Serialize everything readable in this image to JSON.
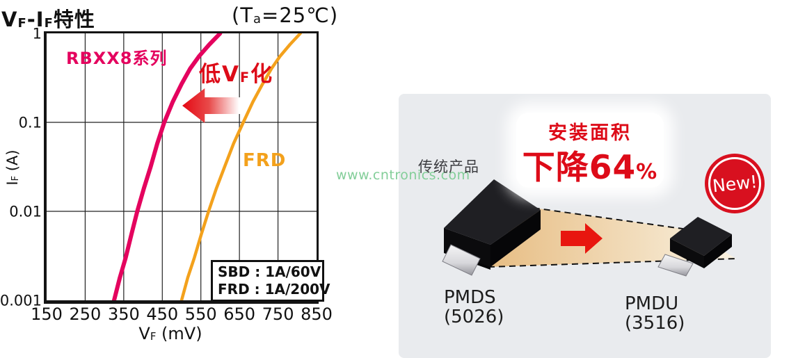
{
  "chart": {
    "title": {
      "p1": "V",
      "s1": "F",
      "p2": "-I",
      "s2": "F",
      "p3": "特性"
    },
    "condition": {
      "pre": "(T",
      "sub": "a",
      "post": "=25℃)"
    },
    "x_axis_label": {
      "main": "V",
      "sub": "F",
      "unit": " (mV)"
    },
    "y_axis_label": {
      "main": "I",
      "sub": "F",
      "unit": " (A)"
    },
    "series_label_sbd": "RBXX8系列",
    "series_label_frd": "FRD",
    "annotation_low_vf": {
      "p1": "低",
      "p2": "V",
      "sub": "F",
      "p3": "化"
    },
    "spec_box": {
      "line1": "SBD : 1A/60V",
      "line2": "FRD : 1A/200V"
    }
  },
  "chart_data": {
    "type": "line",
    "title": "VF-IF特性 (Ta=25℃)",
    "xlabel": "VF (mV)",
    "ylabel": "IF (A)",
    "x_range": [
      150,
      850
    ],
    "y_range": [
      0.001,
      1
    ],
    "y_scale": "log",
    "grid": true,
    "x_ticks": [
      150,
      250,
      350,
      450,
      550,
      650,
      750,
      850
    ],
    "y_ticks": [
      1,
      0.1,
      0.01,
      0.001
    ],
    "x_gridlines": [
      250,
      350,
      450,
      550,
      650,
      750
    ],
    "y_gridlines": [
      0.1,
      0.01
    ],
    "series": [
      {
        "name": "RBXX8系列 (SBD : 1A/60V)",
        "id": "sbd-curve",
        "color": "#e4035e",
        "width": 6,
        "points": [
          [
            325,
            0.001
          ],
          [
            340,
            0.0018
          ],
          [
            355,
            0.003
          ],
          [
            370,
            0.0055
          ],
          [
            385,
            0.01
          ],
          [
            402,
            0.018
          ],
          [
            420,
            0.032
          ],
          [
            437,
            0.058
          ],
          [
            455,
            0.1
          ],
          [
            477,
            0.17
          ],
          [
            500,
            0.27
          ],
          [
            522,
            0.4
          ],
          [
            545,
            0.55
          ],
          [
            572,
            0.75
          ],
          [
            600,
            1.0
          ]
        ]
      },
      {
        "name": "FRD (1A/200V)",
        "id": "frd-curve",
        "color": "#f3a11c",
        "width": 4.5,
        "points": [
          [
            500,
            0.001
          ],
          [
            516,
            0.0018
          ],
          [
            533,
            0.003
          ],
          [
            551,
            0.0055
          ],
          [
            570,
            0.01
          ],
          [
            590,
            0.018
          ],
          [
            612,
            0.032
          ],
          [
            635,
            0.058
          ],
          [
            660,
            0.1
          ],
          [
            685,
            0.17
          ],
          [
            710,
            0.27
          ],
          [
            733,
            0.4
          ],
          [
            755,
            0.55
          ],
          [
            781,
            0.75
          ],
          [
            808,
            1.0
          ]
        ]
      }
    ]
  },
  "panel": {
    "watermark": "www.cntronics.com",
    "legacy_product_label": "传统产品",
    "headline_line1": "安装面积",
    "headline_line2": "下降64",
    "headline_pct": "%",
    "badge": "New!",
    "old_package": {
      "name": "PMDS",
      "code": "(5026)"
    },
    "new_package": {
      "name": "PMDU",
      "code": "(3516)"
    }
  },
  "colors": {
    "sbd_curve": "#e4035e",
    "frd_curve": "#f3a11c",
    "accent_red": "#dd0b18",
    "panel_bg": "#e9ebee",
    "band_tan": "#e7bd83",
    "watermark_green": "#83ce99",
    "badge_red": "#d8101f"
  }
}
